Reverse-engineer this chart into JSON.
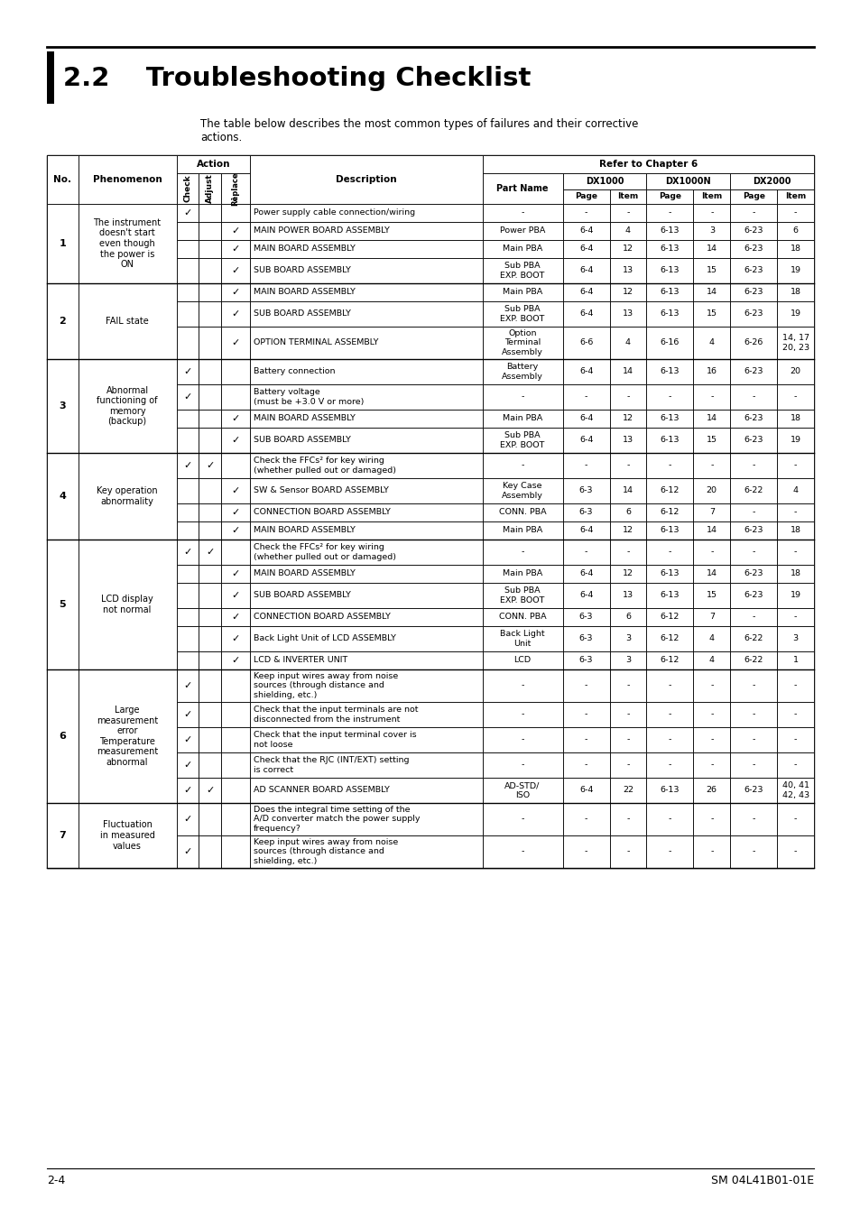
{
  "title": "2.2    Troubleshooting Checklist",
  "subtitle_line1": "The table below describes the most common types of failures and their corrective",
  "subtitle_line2": "actions.",
  "footer_left": "2-4",
  "footer_right": "SM 04L41B01-01E",
  "rows": [
    {
      "no": "1",
      "phenomenon": "The instrument\ndoesn't start\neven though\nthe power is\nON",
      "subrows": [
        {
          "check": true,
          "adjust": false,
          "replace": false,
          "desc": "Power supply cable connection/wiring",
          "part": "-",
          "p1": "-",
          "i1": "-",
          "p2": "-",
          "i2": "-",
          "p3": "-",
          "i3": "-"
        },
        {
          "check": false,
          "adjust": false,
          "replace": true,
          "desc": "MAIN POWER BOARD ASSEMBLY",
          "part": "Power PBA",
          "p1": "6-4",
          "i1": "4",
          "p2": "6-13",
          "i2": "3",
          "p3": "6-23",
          "i3": "6"
        },
        {
          "check": false,
          "adjust": false,
          "replace": true,
          "desc": "MAIN BOARD ASSEMBLY",
          "part": "Main PBA",
          "p1": "6-4",
          "i1": "12",
          "p2": "6-13",
          "i2": "14",
          "p3": "6-23",
          "i3": "18"
        },
        {
          "check": false,
          "adjust": false,
          "replace": true,
          "desc": "SUB BOARD ASSEMBLY",
          "part": "Sub PBA\nEXP. BOOT",
          "p1": "6-4",
          "i1": "13",
          "p2": "6-13",
          "i2": "15",
          "p3": "6-23",
          "i3": "19"
        }
      ]
    },
    {
      "no": "2",
      "phenomenon": "FAIL state",
      "subrows": [
        {
          "check": false,
          "adjust": false,
          "replace": true,
          "desc": "MAIN BOARD ASSEMBLY",
          "part": "Main PBA",
          "p1": "6-4",
          "i1": "12",
          "p2": "6-13",
          "i2": "14",
          "p3": "6-23",
          "i3": "18"
        },
        {
          "check": false,
          "adjust": false,
          "replace": true,
          "desc": "SUB BOARD ASSEMBLY",
          "part": "Sub PBA\nEXP. BOOT",
          "p1": "6-4",
          "i1": "13",
          "p2": "6-13",
          "i2": "15",
          "p3": "6-23",
          "i3": "19"
        },
        {
          "check": false,
          "adjust": false,
          "replace": true,
          "desc": "OPTION TERMINAL ASSEMBLY",
          "part": "Option\nTerminal\nAssembly",
          "p1": "6-6",
          "i1": "4",
          "p2": "6-16",
          "i2": "4",
          "p3": "6-26",
          "i3": "14, 17\n20, 23"
        }
      ]
    },
    {
      "no": "3",
      "phenomenon": "Abnormal\nfunctioning of\nmemory\n(backup)",
      "subrows": [
        {
          "check": true,
          "adjust": false,
          "replace": false,
          "desc": "Battery connection",
          "part": "Battery\nAssembly",
          "p1": "6-4",
          "i1": "14",
          "p2": "6-13",
          "i2": "16",
          "p3": "6-23",
          "i3": "20"
        },
        {
          "check": true,
          "adjust": false,
          "replace": false,
          "desc": "Battery voltage\n(must be +3.0 V or more)",
          "part": "-",
          "p1": "-",
          "i1": "-",
          "p2": "-",
          "i2": "-",
          "p3": "-",
          "i3": "-"
        },
        {
          "check": false,
          "adjust": false,
          "replace": true,
          "desc": "MAIN BOARD ASSEMBLY",
          "part": "Main PBA",
          "p1": "6-4",
          "i1": "12",
          "p2": "6-13",
          "i2": "14",
          "p3": "6-23",
          "i3": "18"
        },
        {
          "check": false,
          "adjust": false,
          "replace": true,
          "desc": "SUB BOARD ASSEMBLY",
          "part": "Sub PBA\nEXP. BOOT",
          "p1": "6-4",
          "i1": "13",
          "p2": "6-13",
          "i2": "15",
          "p3": "6-23",
          "i3": "19"
        }
      ]
    },
    {
      "no": "4",
      "phenomenon": "Key operation\nabnormality",
      "subrows": [
        {
          "check": true,
          "adjust": true,
          "replace": false,
          "desc": "Check the FFCs*2 for key wiring\n(whether pulled out or damaged)",
          "part": "-",
          "p1": "-",
          "i1": "-",
          "p2": "-",
          "i2": "-",
          "p3": "-",
          "i3": "-"
        },
        {
          "check": false,
          "adjust": false,
          "replace": true,
          "desc": "SW & Sensor BOARD ASSEMBLY",
          "part": "Key Case\nAssembly",
          "p1": "6-3",
          "i1": "14",
          "p2": "6-12",
          "i2": "20",
          "p3": "6-22",
          "i3": "4"
        },
        {
          "check": false,
          "adjust": false,
          "replace": true,
          "desc": "CONNECTION BOARD ASSEMBLY",
          "part": "CONN. PBA",
          "p1": "6-3",
          "i1": "6",
          "p2": "6-12",
          "i2": "7",
          "p3": "-",
          "i3": "-"
        },
        {
          "check": false,
          "adjust": false,
          "replace": true,
          "desc": "MAIN BOARD ASSEMBLY",
          "part": "Main PBA",
          "p1": "6-4",
          "i1": "12",
          "p2": "6-13",
          "i2": "14",
          "p3": "6-23",
          "i3": "18"
        }
      ]
    },
    {
      "no": "5",
      "phenomenon": "LCD display\nnot normal",
      "subrows": [
        {
          "check": true,
          "adjust": true,
          "replace": false,
          "desc": "Check the FFCs*2 for key wiring\n(whether pulled out or damaged)",
          "part": "-",
          "p1": "-",
          "i1": "-",
          "p2": "-",
          "i2": "-",
          "p3": "-",
          "i3": "-"
        },
        {
          "check": false,
          "adjust": false,
          "replace": true,
          "desc": "MAIN BOARD ASSEMBLY",
          "part": "Main PBA",
          "p1": "6-4",
          "i1": "12",
          "p2": "6-13",
          "i2": "14",
          "p3": "6-23",
          "i3": "18"
        },
        {
          "check": false,
          "adjust": false,
          "replace": true,
          "desc": "SUB BOARD ASSEMBLY",
          "part": "Sub PBA\nEXP. BOOT",
          "p1": "6-4",
          "i1": "13",
          "p2": "6-13",
          "i2": "15",
          "p3": "6-23",
          "i3": "19"
        },
        {
          "check": false,
          "adjust": false,
          "replace": true,
          "desc": "CONNECTION BOARD ASSEMBLY",
          "part": "CONN. PBA",
          "p1": "6-3",
          "i1": "6",
          "p2": "6-12",
          "i2": "7",
          "p3": "-",
          "i3": "-"
        },
        {
          "check": false,
          "adjust": false,
          "replace": true,
          "desc": "Back Light Unit of LCD ASSEMBLY",
          "part": "Back Light\nUnit",
          "p1": "6-3",
          "i1": "3",
          "p2": "6-12",
          "i2": "4",
          "p3": "6-22",
          "i3": "3"
        },
        {
          "check": false,
          "adjust": false,
          "replace": true,
          "desc": "LCD & INVERTER UNIT",
          "part": "LCD",
          "p1": "6-3",
          "i1": "3",
          "p2": "6-12",
          "i2": "4",
          "p3": "6-22",
          "i3": "1"
        }
      ]
    },
    {
      "no": "6",
      "phenomenon": "Large\nmeasurement\nerror\nTemperature\nmeasurement\nabnormal",
      "subrows": [
        {
          "check": true,
          "adjust": false,
          "replace": false,
          "desc": "Keep input wires away from noise\nsources (through distance and\nshielding, etc.)",
          "part": "-",
          "p1": "-",
          "i1": "-",
          "p2": "-",
          "i2": "-",
          "p3": "-",
          "i3": "-"
        },
        {
          "check": true,
          "adjust": false,
          "replace": false,
          "desc": "Check that the input terminals are not\ndisconnected from the instrument",
          "part": "-",
          "p1": "-",
          "i1": "-",
          "p2": "-",
          "i2": "-",
          "p3": "-",
          "i3": "-"
        },
        {
          "check": true,
          "adjust": false,
          "replace": false,
          "desc": "Check that the input terminal cover is\nnot loose",
          "part": "-",
          "p1": "-",
          "i1": "-",
          "p2": "-",
          "i2": "-",
          "p3": "-",
          "i3": "-"
        },
        {
          "check": true,
          "adjust": false,
          "replace": false,
          "desc": "Check that the RJC (INT/EXT) setting\nis correct",
          "part": "-",
          "p1": "-",
          "i1": "-",
          "p2": "-",
          "i2": "-",
          "p3": "-",
          "i3": "-"
        },
        {
          "check": true,
          "adjust": true,
          "replace": false,
          "desc": "AD SCANNER BOARD ASSEMBLY",
          "part": "AD-STD/\nISO",
          "p1": "6-4",
          "i1": "22",
          "p2": "6-13",
          "i2": "26",
          "p3": "6-23",
          "i3": "40, 41\n42, 43"
        }
      ]
    },
    {
      "no": "7",
      "phenomenon": "Fluctuation\nin measured\nvalues",
      "subrows": [
        {
          "check": true,
          "adjust": false,
          "replace": false,
          "desc": "Does the integral time setting of the\nA/D converter match the power supply\nfrequency?",
          "part": "-",
          "p1": "-",
          "i1": "-",
          "p2": "-",
          "i2": "-",
          "p3": "-",
          "i3": "-"
        },
        {
          "check": true,
          "adjust": false,
          "replace": false,
          "desc": "Keep input wires away from noise\nsources (through distance and\nshielding, etc.)",
          "part": "-",
          "p1": "-",
          "i1": "-",
          "p2": "-",
          "i2": "-",
          "p3": "-",
          "i3": "-"
        }
      ]
    }
  ]
}
